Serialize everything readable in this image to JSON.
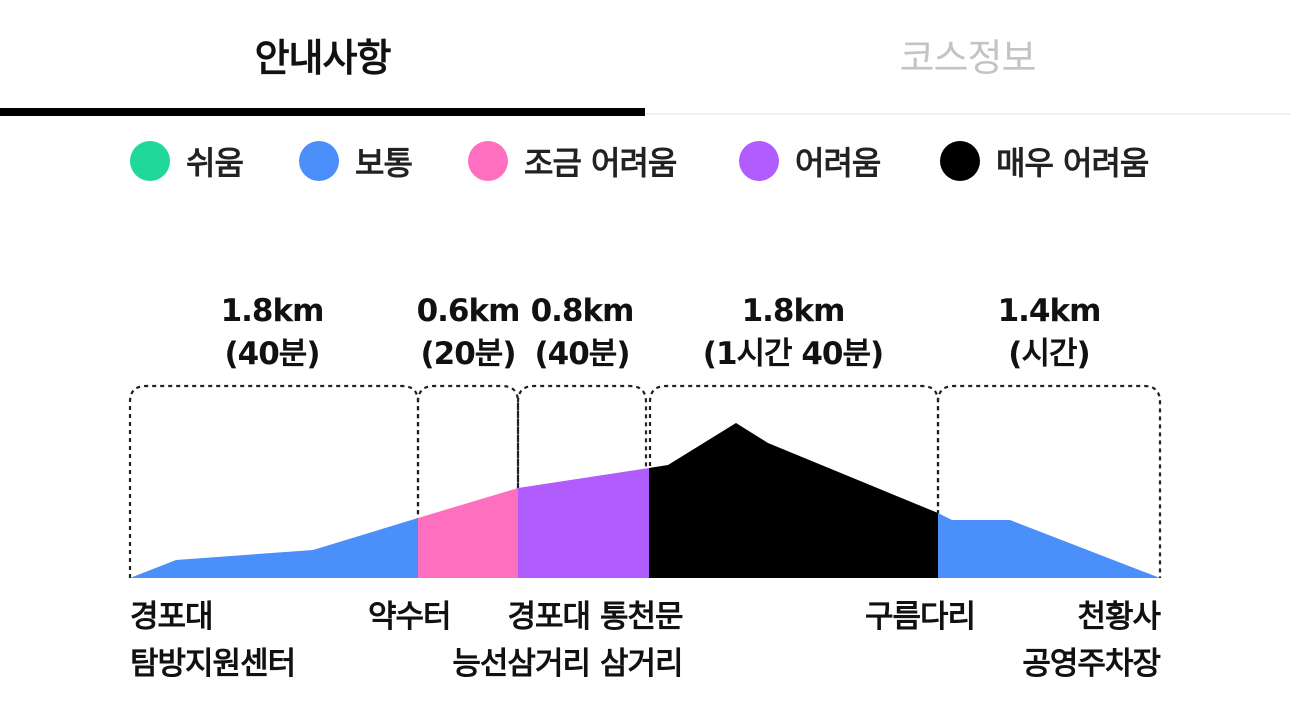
{
  "tabs": [
    {
      "label": "안내사항",
      "active": true
    },
    {
      "label": "코스정보",
      "active": false
    }
  ],
  "legend": [
    {
      "label": "쉬움",
      "color": "#1fd89a"
    },
    {
      "label": "보통",
      "color": "#4b8ffa"
    },
    {
      "label": "조금 어려움",
      "color": "#ff6fbf"
    },
    {
      "label": "어려움",
      "color": "#b15cff"
    },
    {
      "label": "매우 어려움",
      "color": "#000000"
    }
  ],
  "segments": [
    {
      "distance": "1.8km",
      "time": "(40분)",
      "difficulty": "보통"
    },
    {
      "distance": "0.6km",
      "time": "(20분)",
      "difficulty": "조금 어려움"
    },
    {
      "distance": "0.8km",
      "time": "(40분)",
      "difficulty": "어려움"
    },
    {
      "distance": "1.8km",
      "time": "(1시간 40분)",
      "difficulty": "매우 어려움"
    },
    {
      "distance": "1.4km",
      "time": "(시간)",
      "difficulty": "보통"
    }
  ],
  "places": [
    {
      "line1": "경포대",
      "line2": "탐방지원센터"
    },
    {
      "line1": "약수터",
      "line2": ""
    },
    {
      "line1": "경포대",
      "line2": "능선삼거리"
    },
    {
      "line1": "통천문",
      "line2": "삼거리"
    },
    {
      "line1": "구름다리",
      "line2": ""
    },
    {
      "line1": "천황사",
      "line2": "공영주차장"
    }
  ]
}
